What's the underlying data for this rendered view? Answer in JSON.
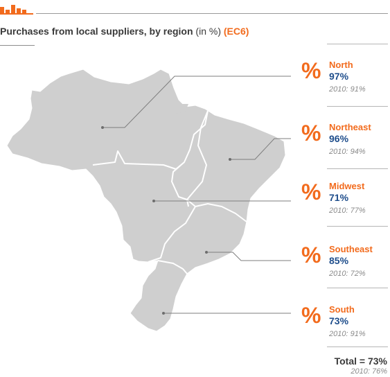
{
  "title": {
    "main": "Purchases from local suppliers, by region",
    "unit": " (in %) ",
    "code": "(EC6)"
  },
  "colors": {
    "accent": "#f26b1d",
    "value": "#1f4e8c",
    "map_fill": "#cfcfcf"
  },
  "regions": [
    {
      "symbol": "%",
      "name": "North",
      "value": "97%",
      "previous": "2010: 91%"
    },
    {
      "symbol": "%",
      "name": "Northeast",
      "value": "96%",
      "previous": "2010: 94%"
    },
    {
      "symbol": "%",
      "name": "Midwest",
      "value": "71%",
      "previous": "2010: 77%"
    },
    {
      "symbol": "%",
      "name": "Southeast",
      "value": "85%",
      "previous": "2010: 72%"
    },
    {
      "symbol": "%",
      "name": "South",
      "value": "73%",
      "previous": "2010: 91%"
    }
  ],
  "total": {
    "label": "Total = 73%",
    "previous": "2010: 76%"
  }
}
